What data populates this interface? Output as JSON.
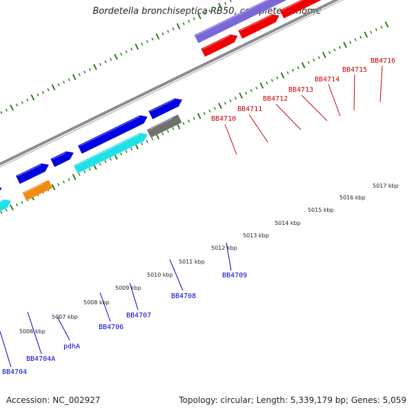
{
  "title": "Bordetella bronchiseptica RB50, complete genome",
  "footer": {
    "accession": "Accession: NC_002927",
    "summary": "Topology: circular; Length: 5,339,179 bp; Genes: 5,059"
  },
  "colors": {
    "backbone": "#8c8c8c",
    "tick": "#2a7a1a",
    "forward_cds": "#0000e0",
    "forward_rna": "#20e0e8",
    "forward_other": "#f08c10",
    "reverse_cds": "#ee0000",
    "reverse_other": "#7b68d8",
    "pseudo": "#707070",
    "reverse_label": "#cc0000",
    "forward_label": "#0000cc"
  },
  "scale_labels": [
    "5006 kbp",
    "5007 kbp",
    "5008 kbp",
    "5009 kbp",
    "5010 kbp",
    "5011 kbp",
    "5012 kbp",
    "5013 kbp",
    "5014 kbp",
    "5015 kbp",
    "5016 kbp",
    "5017 kbp"
  ],
  "forward_genes": [
    "BB4704",
    "BB4704A",
    "pdhA",
    "BB4706",
    "BB4707",
    "BB4708",
    "BB4709"
  ],
  "reverse_genes": [
    "BB4710",
    "BB4711",
    "BB4712",
    "BB4713",
    "BB4714",
    "BB4715",
    "BB4716"
  ]
}
